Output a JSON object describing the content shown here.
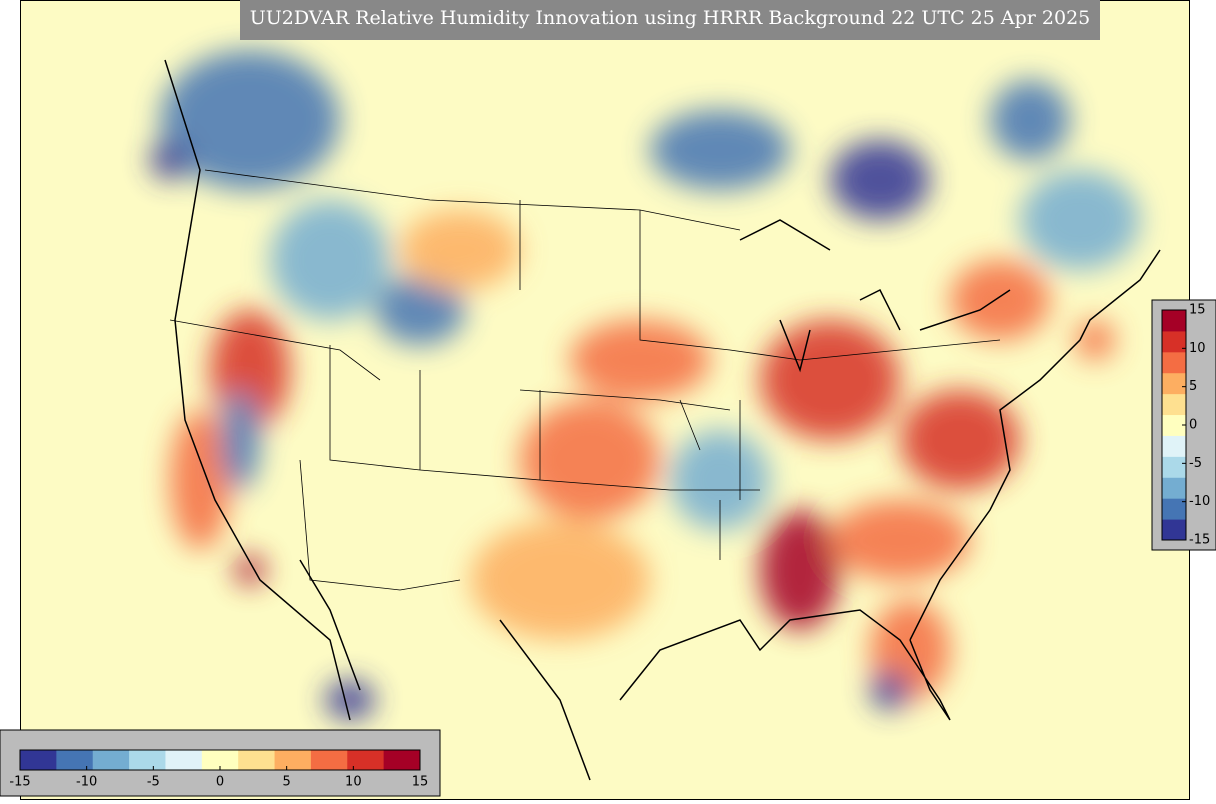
{
  "header": {
    "title": "UU2DVAR Relative Humidity Innovation using HRRR Background 22 UTC 25 Apr 2025"
  },
  "colors": [
    "#313695",
    "#4575b4",
    "#74add1",
    "#abd9e9",
    "#e0f3f8",
    "#ffffbf",
    "#fee090",
    "#fdae61",
    "#f46d43",
    "#d73027",
    "#a50026"
  ],
  "colorbars": [
    {
      "orientation": "vertical",
      "lim": [
        -15,
        15
      ],
      "ticks": [
        15,
        10,
        5,
        0,
        -5,
        -10,
        -15
      ]
    },
    {
      "orientation": "horizontal",
      "lim": [
        -15,
        15
      ],
      "ticks": [
        -15,
        -10,
        -5,
        0,
        5,
        10,
        15
      ]
    }
  ]
}
